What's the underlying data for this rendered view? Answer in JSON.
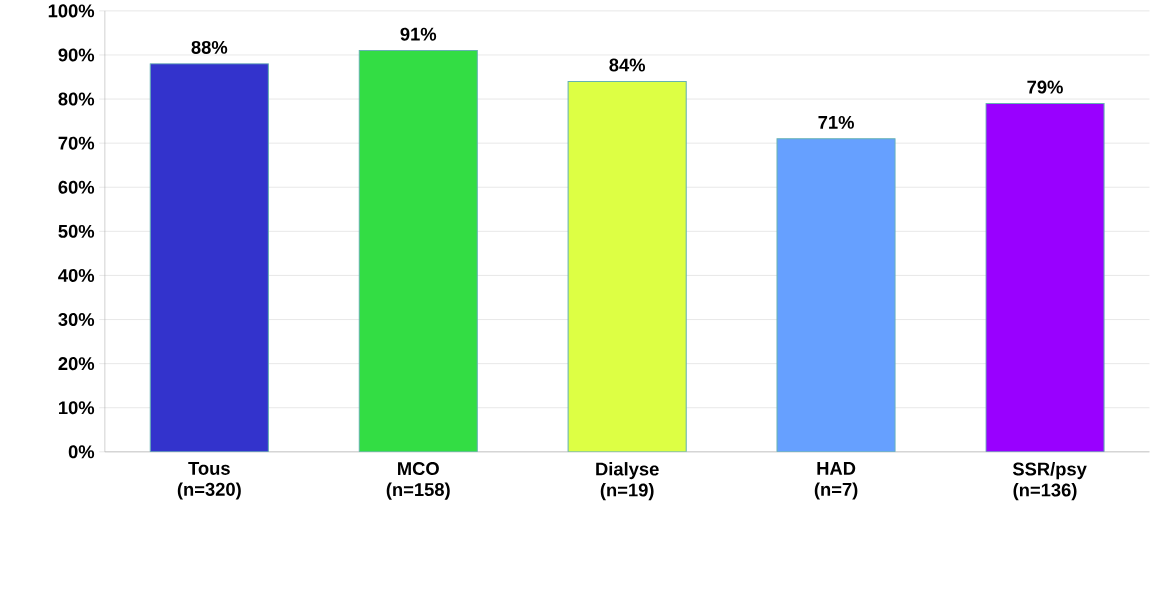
{
  "chart_data": {
    "type": "bar",
    "categories": [
      "Tous (n=320)",
      "MCO (n=158)",
      "Dialyse (n=19)",
      "HAD (n=7)",
      "SSR/psy (n=136)"
    ],
    "values": [
      88,
      91,
      84,
      71,
      79
    ],
    "colors": [
      "#3333cc",
      "#33dd44",
      "#ddff44",
      "#66a0ff",
      "#9900ff"
    ],
    "value_labels": [
      "88%",
      "91%",
      "84%",
      "71%",
      "79%"
    ],
    "ylim": [
      0,
      100
    ],
    "yticks": [
      {
        "value": 0,
        "label": "0%"
      },
      {
        "value": 10,
        "label": "10%"
      },
      {
        "value": 20,
        "label": "20%"
      },
      {
        "value": 30,
        "label": "30%"
      },
      {
        "value": 40,
        "label": "40%"
      },
      {
        "value": 50,
        "label": "50%"
      },
      {
        "value": 60,
        "label": "60%"
      },
      {
        "value": 70,
        "label": "70%"
      },
      {
        "value": 80,
        "label": "80%"
      },
      {
        "value": 90,
        "label": "90%"
      },
      {
        "value": 100,
        "label": "100%"
      }
    ],
    "grid": "y"
  }
}
